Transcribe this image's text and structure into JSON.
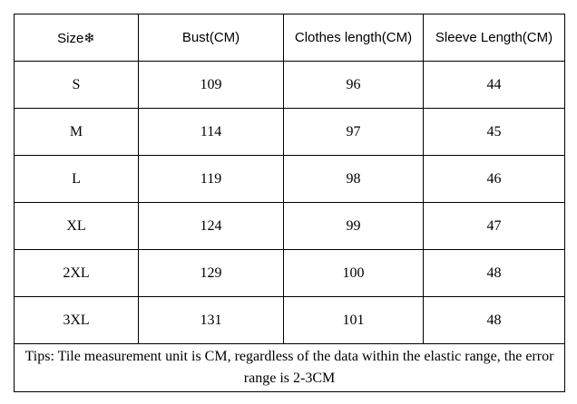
{
  "table": {
    "header": [
      "Size❄",
      "Bust(CM)",
      "Clothes length(CM)",
      "Sleeve Length(CM)"
    ],
    "rows": [
      [
        "S",
        109,
        96,
        44
      ],
      [
        "M",
        114,
        97,
        45
      ],
      [
        "L",
        119,
        98,
        46
      ],
      [
        "XL",
        124,
        99,
        47
      ],
      [
        "2XL",
        129,
        100,
        48
      ],
      [
        "3XL",
        131,
        101,
        48
      ]
    ],
    "note": "Tips: Tile measurement unit is CM, regardless of the data within the elastic range, the error range is 2-3CM"
  }
}
